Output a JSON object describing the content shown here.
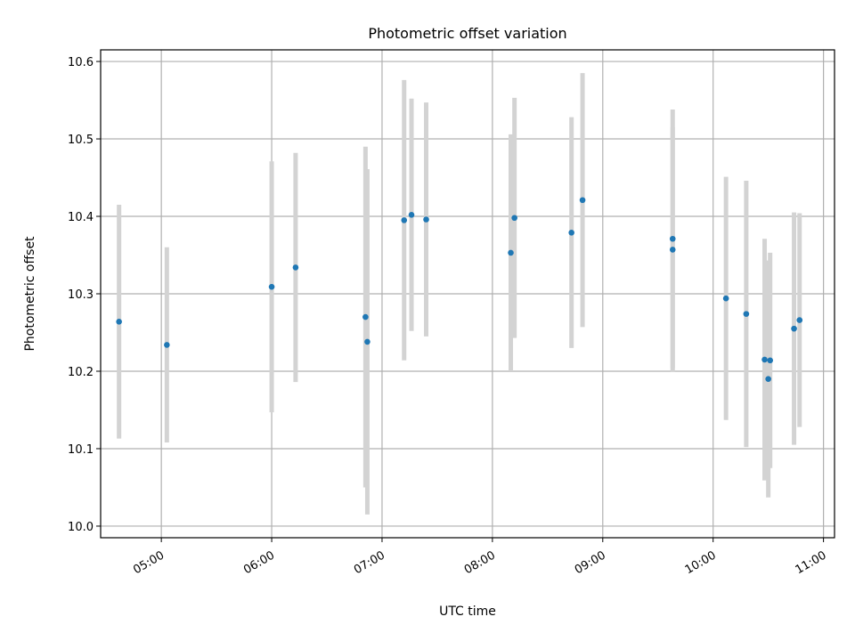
{
  "chart_data": {
    "type": "scatter",
    "title": "Photometric offset variation",
    "xlabel": "UTC time",
    "ylabel": "Photometric offset",
    "xlim": [
      "04:27",
      "11:06"
    ],
    "ylim": [
      9.985,
      10.615
    ],
    "grid": true,
    "x_ticks": [
      "05:00",
      "06:00",
      "07:00",
      "08:00",
      "09:00",
      "10:00",
      "11:00"
    ],
    "y_ticks": [
      10.0,
      10.1,
      10.2,
      10.3,
      10.4,
      10.5,
      10.6
    ],
    "y_tick_labels": [
      "10.0",
      "10.1",
      "10.2",
      "10.3",
      "10.4",
      "10.5",
      "10.6"
    ],
    "point_color": "#1f77b4",
    "errorbar_color": "#d3d3d3",
    "points": [
      {
        "x": "04:37",
        "y": 10.264,
        "yerr": 0.151
      },
      {
        "x": "05:03",
        "y": 10.234,
        "yerr": 0.126
      },
      {
        "x": "06:00",
        "y": 10.309,
        "yerr": 0.162
      },
      {
        "x": "06:13",
        "y": 10.334,
        "yerr": 0.148
      },
      {
        "x": "06:51",
        "y": 10.27,
        "yerr": 0.22
      },
      {
        "x": "06:52",
        "y": 10.238,
        "yerr": 0.223
      },
      {
        "x": "07:12",
        "y": 10.395,
        "yerr": 0.181
      },
      {
        "x": "07:16",
        "y": 10.402,
        "yerr": 0.15
      },
      {
        "x": "07:24",
        "y": 10.396,
        "yerr": 0.151
      },
      {
        "x": "08:10",
        "y": 10.353,
        "yerr": 0.153
      },
      {
        "x": "08:12",
        "y": 10.398,
        "yerr": 0.155
      },
      {
        "x": "08:43",
        "y": 10.379,
        "yerr": 0.149
      },
      {
        "x": "08:49",
        "y": 10.421,
        "yerr": 0.164
      },
      {
        "x": "09:38",
        "y": 10.371,
        "yerr": 0.167
      },
      {
        "x": "09:38",
        "y": 10.357,
        "yerr": 0.158
      },
      {
        "x": "10:07",
        "y": 10.294,
        "yerr": 0.157
      },
      {
        "x": "10:18",
        "y": 10.274,
        "yerr": 0.172
      },
      {
        "x": "10:28",
        "y": 10.215,
        "yerr": 0.156
      },
      {
        "x": "10:30",
        "y": 10.19,
        "yerr": 0.153
      },
      {
        "x": "10:31",
        "y": 10.214,
        "yerr": 0.139
      },
      {
        "x": "10:44",
        "y": 10.255,
        "yerr": 0.15
      },
      {
        "x": "10:47",
        "y": 10.266,
        "yerr": 0.138
      }
    ]
  }
}
